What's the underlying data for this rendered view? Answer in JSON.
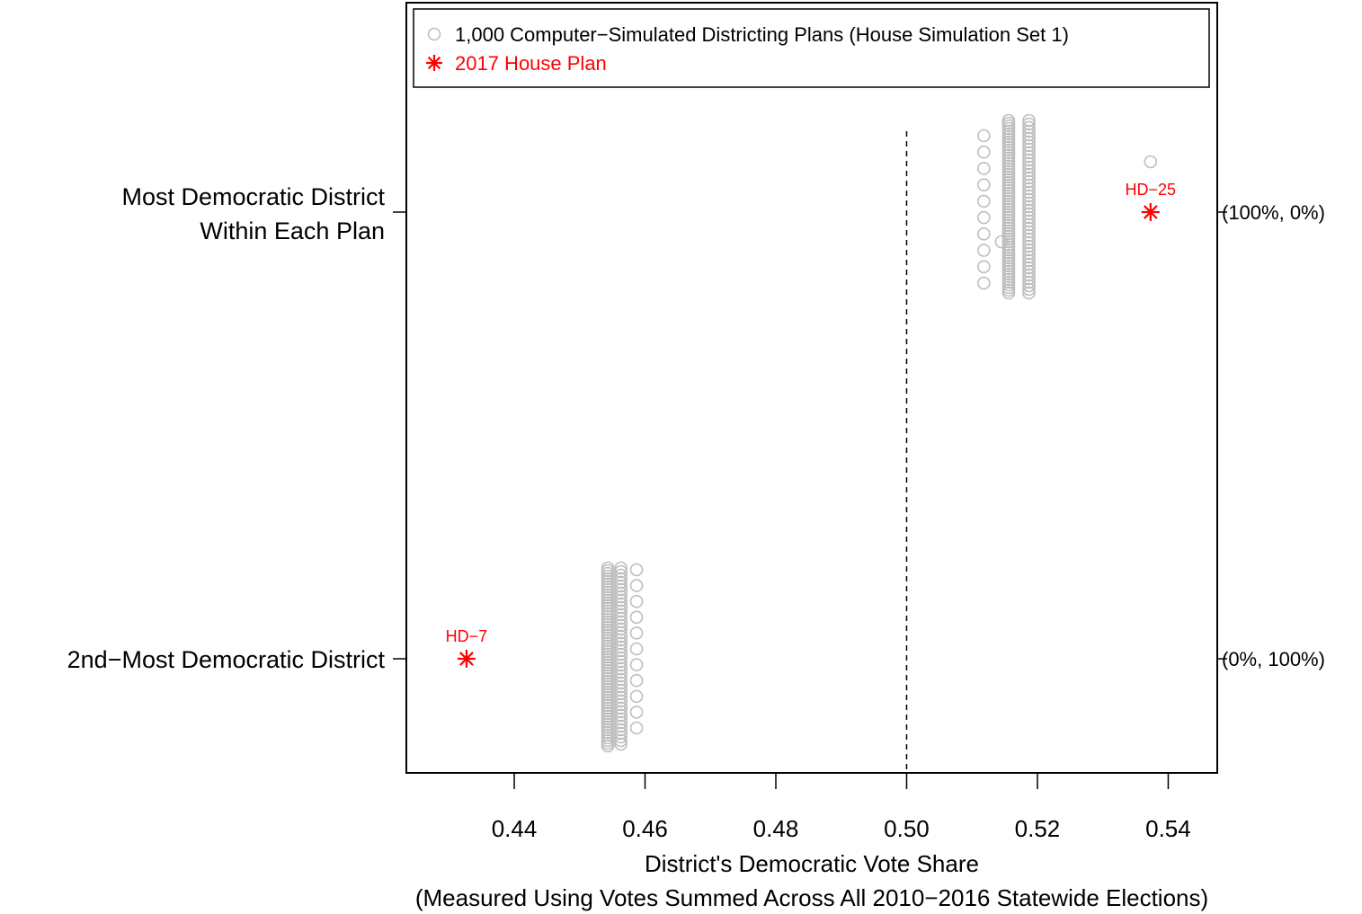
{
  "chart_data": {
    "type": "scatter",
    "title": "",
    "xlabel": "District's Democratic Vote Share",
    "xlabel_sub": "(Measured Using Votes Summed Across All 2010−2016 Statewide Elections)",
    "xlim": [
      0.4235,
      0.5475
    ],
    "xticks": [
      0.44,
      0.46,
      0.48,
      0.5,
      0.52,
      0.54
    ],
    "xtick_labels": [
      "0.44",
      "0.46",
      "0.48",
      "0.50",
      "0.52",
      "0.54"
    ],
    "reference_line_x": 0.5,
    "grid": false,
    "legend_position": "top",
    "legend": [
      {
        "label": "1,000 Computer−Simulated Districting Plans (House Simulation Set 1)",
        "marker": "open-circle",
        "color": "#bebebe"
      },
      {
        "label": "2017 House Plan",
        "marker": "asterisk",
        "color": "#ff0000"
      }
    ],
    "rows": [
      {
        "left_label_lines": [
          "Most Democratic District",
          "Within Each Plan"
        ],
        "right_label": "(100%, 0%)",
        "sim_x_columns": [
          0.5156,
          0.5187
        ],
        "sim_x_outliers": [
          0.5118,
          0.5118,
          0.5118,
          0.5118,
          0.5118,
          0.5118,
          0.5118,
          0.5118,
          0.5118,
          0.5118,
          0.5145,
          0.5373
        ],
        "plan_point": {
          "label": "HD−25",
          "x": 0.5373
        }
      },
      {
        "left_label_lines": [
          "2nd−Most Democratic District"
        ],
        "right_label": "(0%, 100%)",
        "sim_x_columns": [
          0.4543,
          0.4563
        ],
        "sim_x_outliers": [
          0.4587,
          0.4587,
          0.4587,
          0.4587,
          0.4587,
          0.4587,
          0.4587,
          0.4587,
          0.4587,
          0.4587,
          0.4587
        ],
        "plan_point": {
          "label": "HD−7",
          "x": 0.4327
        }
      }
    ]
  }
}
